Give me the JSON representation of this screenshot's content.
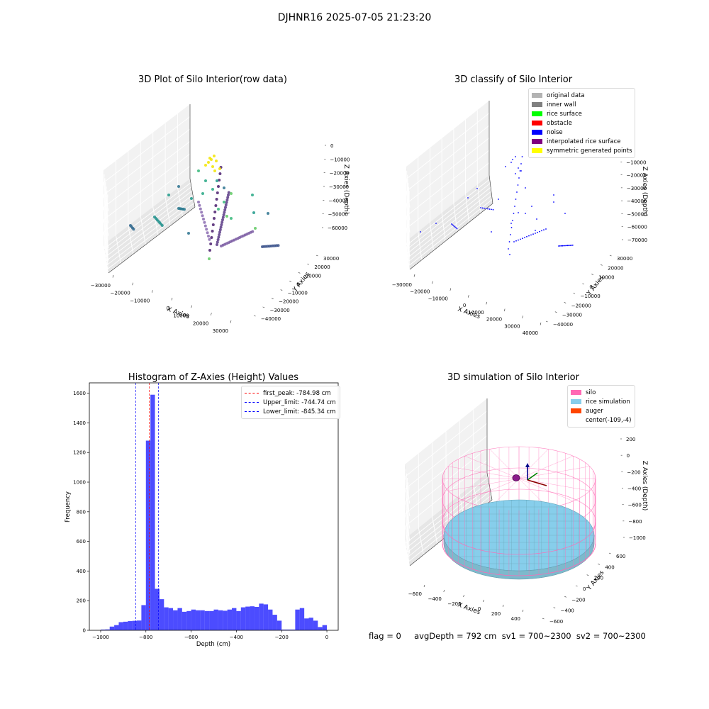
{
  "figure": {
    "suptitle": "DJHNR16 2025-07-05 21:23:20",
    "footer": "flag = 0     avgDepth = 792 cm  sv1 = 700~2300  sv2 = 700~2300"
  },
  "chart_data": [
    {
      "id": "raw3d",
      "type": "scatter",
      "title": "3D Plot of Silo Interior(row data)",
      "xlabel": "X Axies",
      "ylabel": "Y Axies",
      "zlabel": "Z Axies (Depth)",
      "xticks": [
        "−30000",
        "−20000",
        "−10000",
        "0",
        "10000",
        "20000",
        "30000"
      ],
      "yticks": [
        "−40000",
        "−30000",
        "−20000",
        "−10000",
        "0",
        "10000",
        "20000",
        "30000"
      ],
      "zticks": [
        "0",
        "−10000",
        "−20000",
        "−30000",
        "−40000",
        "−50000",
        "−60000"
      ],
      "colormap": "viridis"
    },
    {
      "id": "classify3d",
      "type": "scatter",
      "title": "3D classify of Silo Interior",
      "xlabel": "X Axies",
      "ylabel": "Y Axies",
      "zlabel": "Z Axies (Depth)",
      "xticks": [
        "−30000",
        "−20000",
        "−10000",
        "0",
        "10000",
        "20000",
        "30000",
        "40000"
      ],
      "yticks": [
        "−40000",
        "−30000",
        "−20000",
        "−10000",
        "0",
        "10000",
        "20000",
        "30000"
      ],
      "zticks": [
        "0",
        "−10000",
        "−20000",
        "−30000",
        "−40000",
        "−50000",
        "−60000",
        "−70000"
      ],
      "legend": [
        {
          "label": "original data",
          "color": "#b3b3b3"
        },
        {
          "label": "inner wall",
          "color": "#808080"
        },
        {
          "label": "rice surface",
          "color": "#00ff00"
        },
        {
          "label": "obstacle",
          "color": "#ff0000"
        },
        {
          "label": "noise",
          "color": "#0000ff"
        },
        {
          "label": "interpolated rice surface",
          "color": "#800080"
        },
        {
          "label": "symmetric generated points",
          "color": "#ffff00"
        }
      ]
    },
    {
      "id": "histogram",
      "type": "bar",
      "title": "Histogram of Z-Axies (Height) Values",
      "xlabel": "Depth (cm)",
      "ylabel": "Frequency",
      "xlim": [
        -1050,
        50
      ],
      "ylim": [
        0,
        1670
      ],
      "xticks": [
        -1000,
        -800,
        -600,
        -400,
        -200,
        0
      ],
      "xtick_labels": [
        "−1000",
        "−800",
        "−600",
        "−400",
        "−200",
        "0"
      ],
      "yticks": [
        0,
        200,
        400,
        600,
        800,
        1000,
        1200,
        1400,
        1600
      ],
      "bin_start": -1000,
      "bin_width": 20,
      "values": [
        5,
        6,
        25,
        35,
        55,
        58,
        62,
        64,
        66,
        170,
        1280,
        1590,
        280,
        210,
        155,
        150,
        135,
        150,
        125,
        130,
        140,
        135,
        135,
        130,
        130,
        140,
        135,
        132,
        140,
        150,
        130,
        155,
        160,
        162,
        158,
        180,
        175,
        140,
        105,
        65,
        5,
        5,
        5,
        140,
        150,
        80,
        85,
        65,
        22,
        35
      ],
      "bar_color": "#0000ff",
      "vlines": [
        {
          "label": "first_peak: -784.98 cm",
          "x": -784.98,
          "color": "#ff0000"
        },
        {
          "label": "Upper_limit: -744.74 cm",
          "x": -744.74,
          "color": "#0000ff"
        },
        {
          "label": "Lower_limit: -845.34 cm",
          "x": -845.34,
          "color": "#0000ff"
        }
      ],
      "legend_position": "upper-right"
    },
    {
      "id": "simulation3d",
      "type": "surface",
      "title": "3D simulation of Silo Interior",
      "xlabel": "X Axies",
      "ylabel": "Y Axies",
      "zlabel": "Z Axies (Depth)",
      "xticks": [
        "−600",
        "−400",
        "−200",
        "0",
        "200",
        "400"
      ],
      "yticks": [
        "−600",
        "−400",
        "−200",
        "0",
        "200",
        "400",
        "600"
      ],
      "zticks": [
        "200",
        "0",
        "−200",
        "−400",
        "−600",
        "−800",
        "−1000"
      ],
      "legend": [
        {
          "label": "silo",
          "color": "#ff69b4"
        },
        {
          "label": "rice simulation",
          "color": "#87ceeb"
        },
        {
          "label": "auger",
          "color": "#ff4500"
        },
        {
          "label": "center(-109,-4)",
          "color": ""
        }
      ]
    }
  ]
}
